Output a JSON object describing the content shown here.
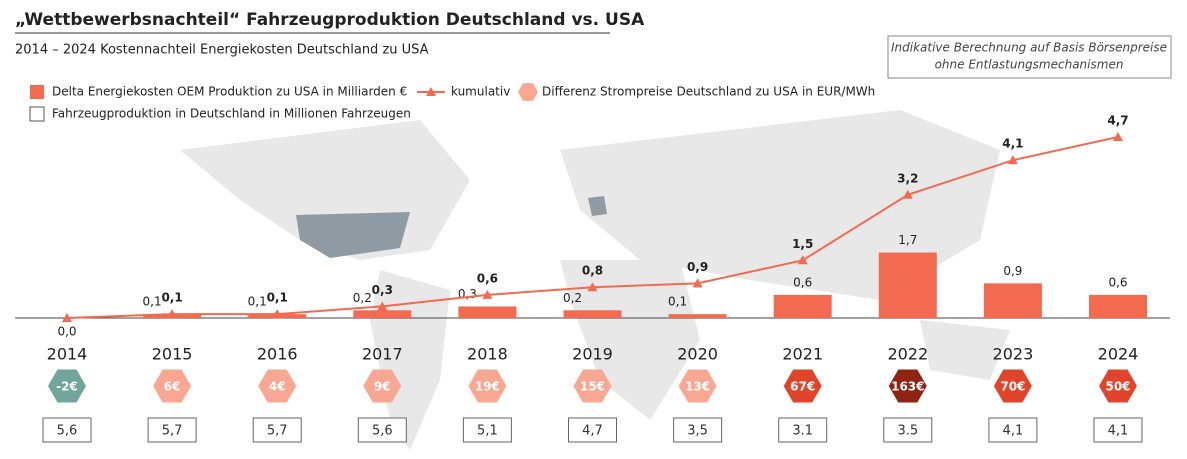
{
  "chart_data": {
    "type": "bar",
    "title": "„Wettbewerbsnachteil“ Fahrzeugproduktion Deutschland vs. USA",
    "subtitle": "2014 – 2024 Kostennachteil Energiekosten Deutschland zu USA",
    "note": [
      "Indikative Berechnung auf Basis Börsenpreise",
      "ohne Entlastungsmechanismen"
    ],
    "categories": [
      "2014",
      "2015",
      "2016",
      "2017",
      "2018",
      "2019",
      "2020",
      "2021",
      "2022",
      "2023",
      "2024"
    ],
    "ylim": [
      0,
      5
    ],
    "series": [
      {
        "name": "Delta Energiekosten OEM Produktion zu USA in Milliarden €",
        "type": "bar",
        "color": "#f26b50",
        "values": [
          null,
          0.1,
          0.1,
          0.2,
          0.3,
          0.2,
          0.1,
          0.6,
          1.7,
          0.9,
          0.6
        ],
        "value_labels": [
          null,
          "0,1",
          "0,1",
          "0,2",
          "0,3",
          "0,2",
          "0,1",
          "0,6",
          "1,7",
          "0,9",
          "0,6"
        ]
      },
      {
        "name": "kumulativ",
        "type": "line",
        "color": "#f26b50",
        "values": [
          0.0,
          0.1,
          0.1,
          0.3,
          0.6,
          0.8,
          0.9,
          1.5,
          3.2,
          4.1,
          4.7
        ],
        "value_labels": [
          "0,0",
          "0,1",
          "0,1",
          "0,3",
          "0,6",
          "0,8",
          "0,9",
          "1,5",
          "3,2",
          "4,1",
          "4,7"
        ]
      },
      {
        "name": "Differenz Strompreise Deutschland zu USA in EUR/MWh",
        "type": "hexagon",
        "color": "#f8a792",
        "values": [
          -2,
          6,
          4,
          9,
          19,
          15,
          13,
          67,
          163,
          70,
          50
        ],
        "value_labels": [
          "-2€",
          "6€",
          "4€",
          "9€",
          "19€",
          "15€",
          "13€",
          "67€",
          "163€",
          "70€",
          "50€"
        ],
        "colors": [
          "#6fa59a",
          "#f8a792",
          "#f8a792",
          "#f8a792",
          "#f8a792",
          "#f8a792",
          "#f8a792",
          "#e0452b",
          "#8f2314",
          "#e0452b",
          "#e0452b"
        ]
      },
      {
        "name": "Fahrzeugproduktion in Deutschland in Millionen Fahrzeugen",
        "type": "box",
        "color": "#ffffff",
        "values": [
          5.6,
          5.7,
          5.7,
          5.6,
          5.1,
          4.7,
          3.5,
          3.1,
          3.5,
          4.1,
          4.1
        ],
        "value_labels": [
          "5,6",
          "5,7",
          "5,7",
          "5,6",
          "5,1",
          "4,7",
          "3,5",
          "3.1",
          "3.5",
          "4,1",
          "4,1"
        ]
      }
    ]
  }
}
